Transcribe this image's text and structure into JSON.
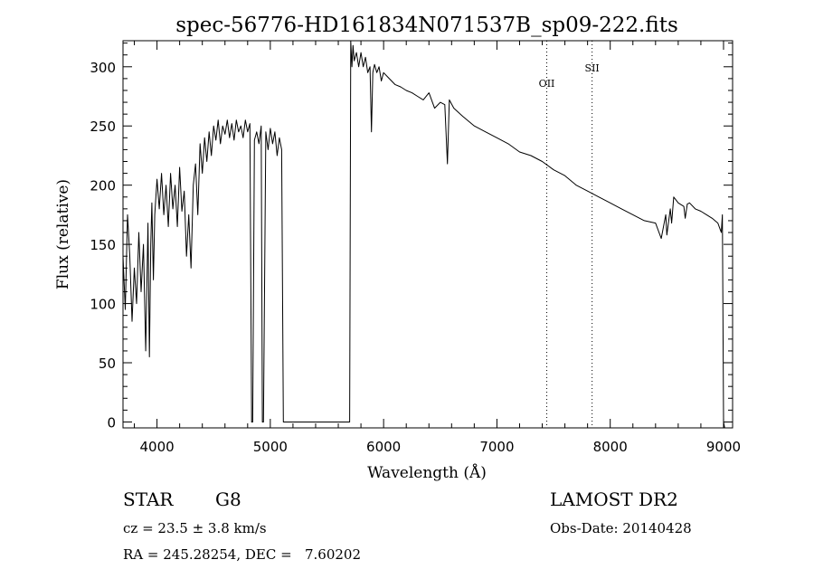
{
  "chart_data": {
    "type": "line",
    "title": "spec-56776-HD161834N071537B_sp09-222.fits",
    "xlabel": "Wavelength (Å)",
    "ylabel": "Flux (relative)",
    "xlim": [
      3700,
      9080
    ],
    "ylim": [
      -5,
      322
    ],
    "x_ticks": [
      4000,
      5000,
      6000,
      7000,
      8000,
      9000
    ],
    "y_ticks": [
      0,
      50,
      100,
      150,
      200,
      250,
      300
    ],
    "grid": false,
    "line_color": "#000000",
    "spectrum_x": [
      3700,
      3720,
      3740,
      3760,
      3780,
      3800,
      3820,
      3840,
      3860,
      3880,
      3900,
      3920,
      3933,
      3945,
      3955,
      3968,
      3980,
      4000,
      4020,
      4040,
      4060,
      4080,
      4100,
      4120,
      4140,
      4160,
      4180,
      4200,
      4220,
      4240,
      4260,
      4280,
      4300,
      4320,
      4340,
      4360,
      4380,
      4400,
      4420,
      4440,
      4460,
      4480,
      4500,
      4520,
      4540,
      4560,
      4580,
      4600,
      4620,
      4640,
      4660,
      4680,
      4700,
      4720,
      4740,
      4760,
      4780,
      4800,
      4820,
      4835,
      4845,
      4860,
      4880,
      4900,
      4920,
      4930,
      4940,
      4960,
      4980,
      5000,
      5020,
      5040,
      5060,
      5080,
      5100,
      5115,
      5125,
      5145,
      5150,
      5600,
      5700,
      5710,
      5720,
      5730,
      5740,
      5760,
      5780,
      5800,
      5820,
      5840,
      5860,
      5880,
      5893,
      5905,
      5920,
      5940,
      5960,
      5980,
      6000,
      6050,
      6100,
      6150,
      6200,
      6250,
      6300,
      6350,
      6400,
      6450,
      6500,
      6540,
      6563,
      6580,
      6620,
      6700,
      6800,
      6900,
      7000,
      7100,
      7200,
      7300,
      7400,
      7500,
      7600,
      7700,
      7800,
      7900,
      8000,
      8100,
      8200,
      8300,
      8400,
      8450,
      8490,
      8500,
      8530,
      8542,
      8560,
      8600,
      8650,
      8662,
      8680,
      8700,
      8750,
      8800,
      8850,
      8900,
      8950,
      8980,
      8990,
      9000,
      9010
    ],
    "spectrum_y": [
      140,
      95,
      175,
      140,
      85,
      130,
      100,
      160,
      110,
      150,
      60,
      168,
      55,
      150,
      185,
      120,
      175,
      205,
      180,
      210,
      175,
      200,
      165,
      210,
      180,
      200,
      165,
      215,
      178,
      195,
      140,
      175,
      130,
      200,
      218,
      175,
      235,
      210,
      240,
      220,
      245,
      225,
      250,
      238,
      255,
      235,
      250,
      243,
      255,
      240,
      252,
      238,
      255,
      245,
      250,
      240,
      255,
      245,
      252,
      0,
      0,
      238,
      245,
      235,
      250,
      0,
      0,
      245,
      230,
      248,
      235,
      245,
      225,
      240,
      230,
      0,
      0,
      0,
      0,
      0,
      0,
      322,
      300,
      318,
      305,
      312,
      300,
      312,
      300,
      308,
      295,
      300,
      245,
      295,
      302,
      295,
      300,
      288,
      295,
      290,
      285,
      283,
      280,
      278,
      275,
      272,
      278,
      265,
      270,
      268,
      218,
      272,
      265,
      258,
      250,
      245,
      240,
      235,
      228,
      225,
      220,
      213,
      208,
      200,
      195,
      190,
      185,
      180,
      175,
      170,
      168,
      155,
      175,
      158,
      180,
      168,
      190,
      185,
      182,
      172,
      184,
      185,
      180,
      178,
      175,
      172,
      168,
      160,
      175,
      0,
      -5
    ],
    "vlines": [
      {
        "x": 7440,
        "label": "OII"
      },
      {
        "x": 7840,
        "label": "SII"
      }
    ]
  },
  "footer": {
    "object_type": "STAR",
    "subclass": "G8",
    "survey": "LAMOST DR2",
    "cz_line": "cz = 23.5 ± 3.8 km/s",
    "obs_date": "Obs-Date: 20140428",
    "coord_line": "RA = 245.28254, DEC =   7.60202"
  }
}
